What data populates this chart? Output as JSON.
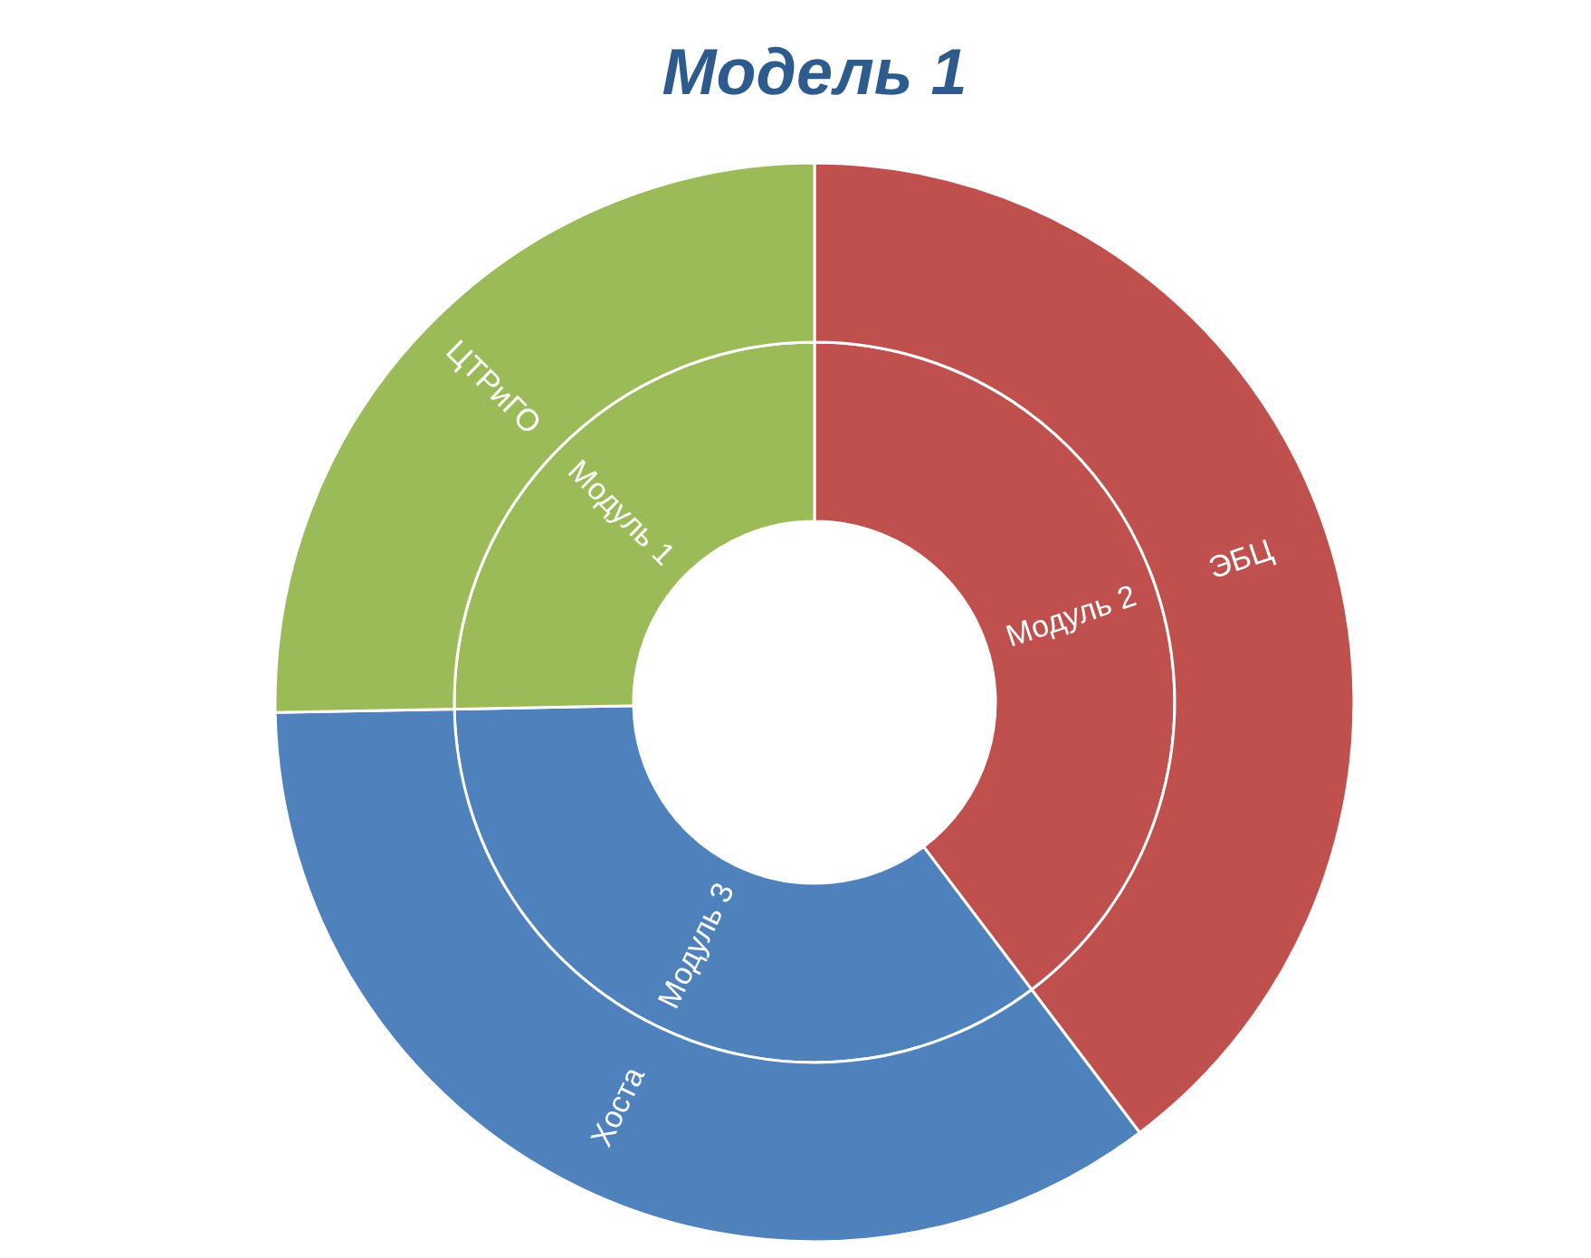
{
  "chart_data": [
    {
      "type": "donut",
      "title": "Модель 1",
      "categories": [
        "Модуль 2",
        "Модуль 3",
        "Модуль 1"
      ],
      "values": [
        39.7,
        35.0,
        25.3
      ],
      "colors": [
        "#c0504d",
        "#4f81bd",
        "#9bbb59"
      ]
    },
    {
      "type": "donut",
      "categories": [
        "ЭБЦ",
        "Хоста",
        "ЦТРиГО"
      ],
      "values": [
        39.7,
        35.0,
        25.3
      ],
      "colors": [
        "#c0504d",
        "#4f81bd",
        "#9bbb59"
      ]
    }
  ]
}
